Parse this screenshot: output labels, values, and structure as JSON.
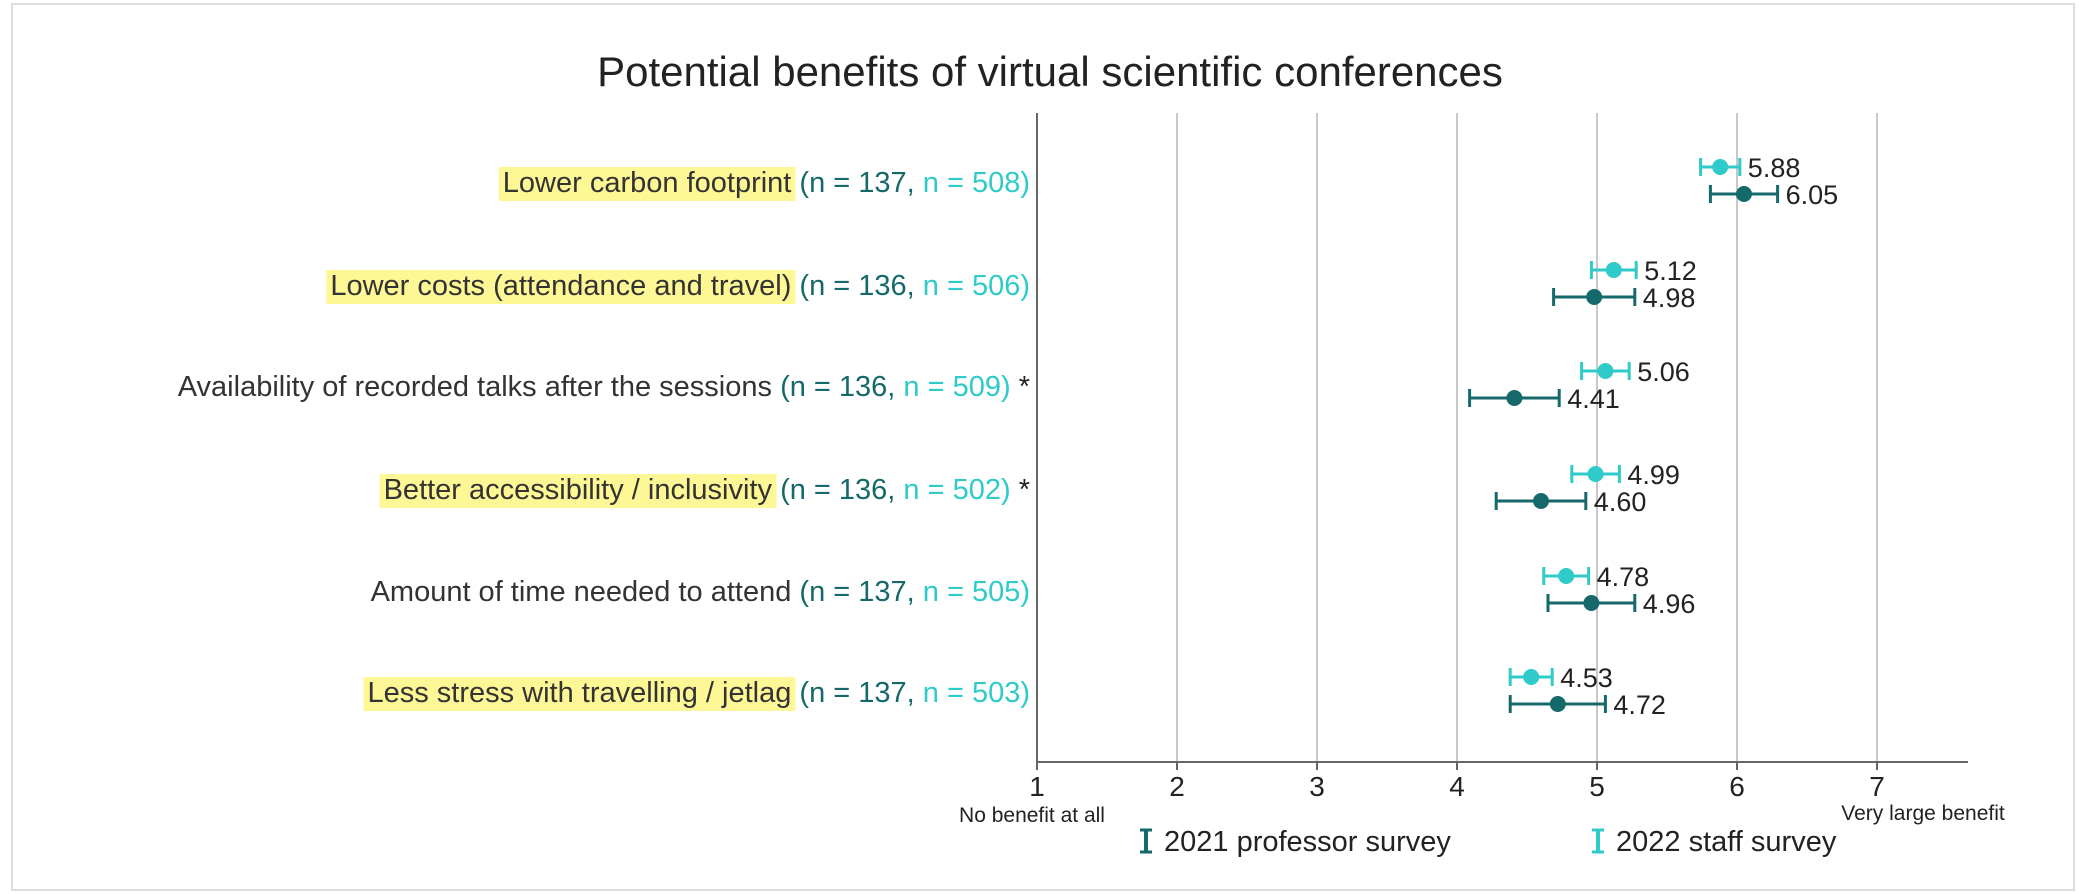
{
  "chart_data": {
    "type": "dot-errorbar",
    "title": "Potential benefits of virtual scientific conferences",
    "categories": [
      "Lower carbon footprint",
      "Lower costs (attendance and travel)",
      "Availability of recorded talks after the sessions",
      "Better accessibility / inclusivity",
      "Amount of time needed to attend",
      "Less stress with travelling / jetlag"
    ],
    "highlight": [
      true,
      true,
      false,
      true,
      false,
      true
    ],
    "notes": [
      null,
      null,
      "*",
      "*",
      null,
      null
    ],
    "highlight_color": "#fdf795",
    "series": [
      {
        "name": "2021 professor survey",
        "color": "#16696a",
        "values": [
          6.05,
          4.98,
          4.41,
          4.6,
          4.96,
          4.72
        ],
        "value_labels": [
          "6.05",
          "4.98",
          "4.41",
          "4.60",
          "4.96",
          "4.72"
        ],
        "errors": [
          0.24,
          0.29,
          0.32,
          0.32,
          0.31,
          0.34
        ],
        "n_labels": [
          "(n = 137,",
          "(n = 136,",
          "(n = 136,",
          "(n = 136,",
          "(n = 137,",
          "(n = 137,"
        ]
      },
      {
        "name": "2022 staff survey",
        "color": "#2fcaca",
        "values": [
          5.88,
          5.12,
          5.06,
          4.99,
          4.78,
          4.53
        ],
        "value_labels": [
          "5.88",
          "5.12",
          "5.06",
          "4.99",
          "4.78",
          "4.53"
        ],
        "errors": [
          0.14,
          0.16,
          0.17,
          0.17,
          0.16,
          0.15
        ],
        "n_labels": [
          "n = 508)",
          "n = 506)",
          "n = 509)",
          "n = 502)",
          "n = 505)",
          "n = 503)"
        ]
      }
    ],
    "xlim": [
      1,
      7.65
    ],
    "xticks": [
      1,
      2,
      3,
      4,
      5,
      6,
      7
    ],
    "grid": true,
    "x_low_label": "No benefit at all",
    "x_high_label": "Very large benefit"
  }
}
